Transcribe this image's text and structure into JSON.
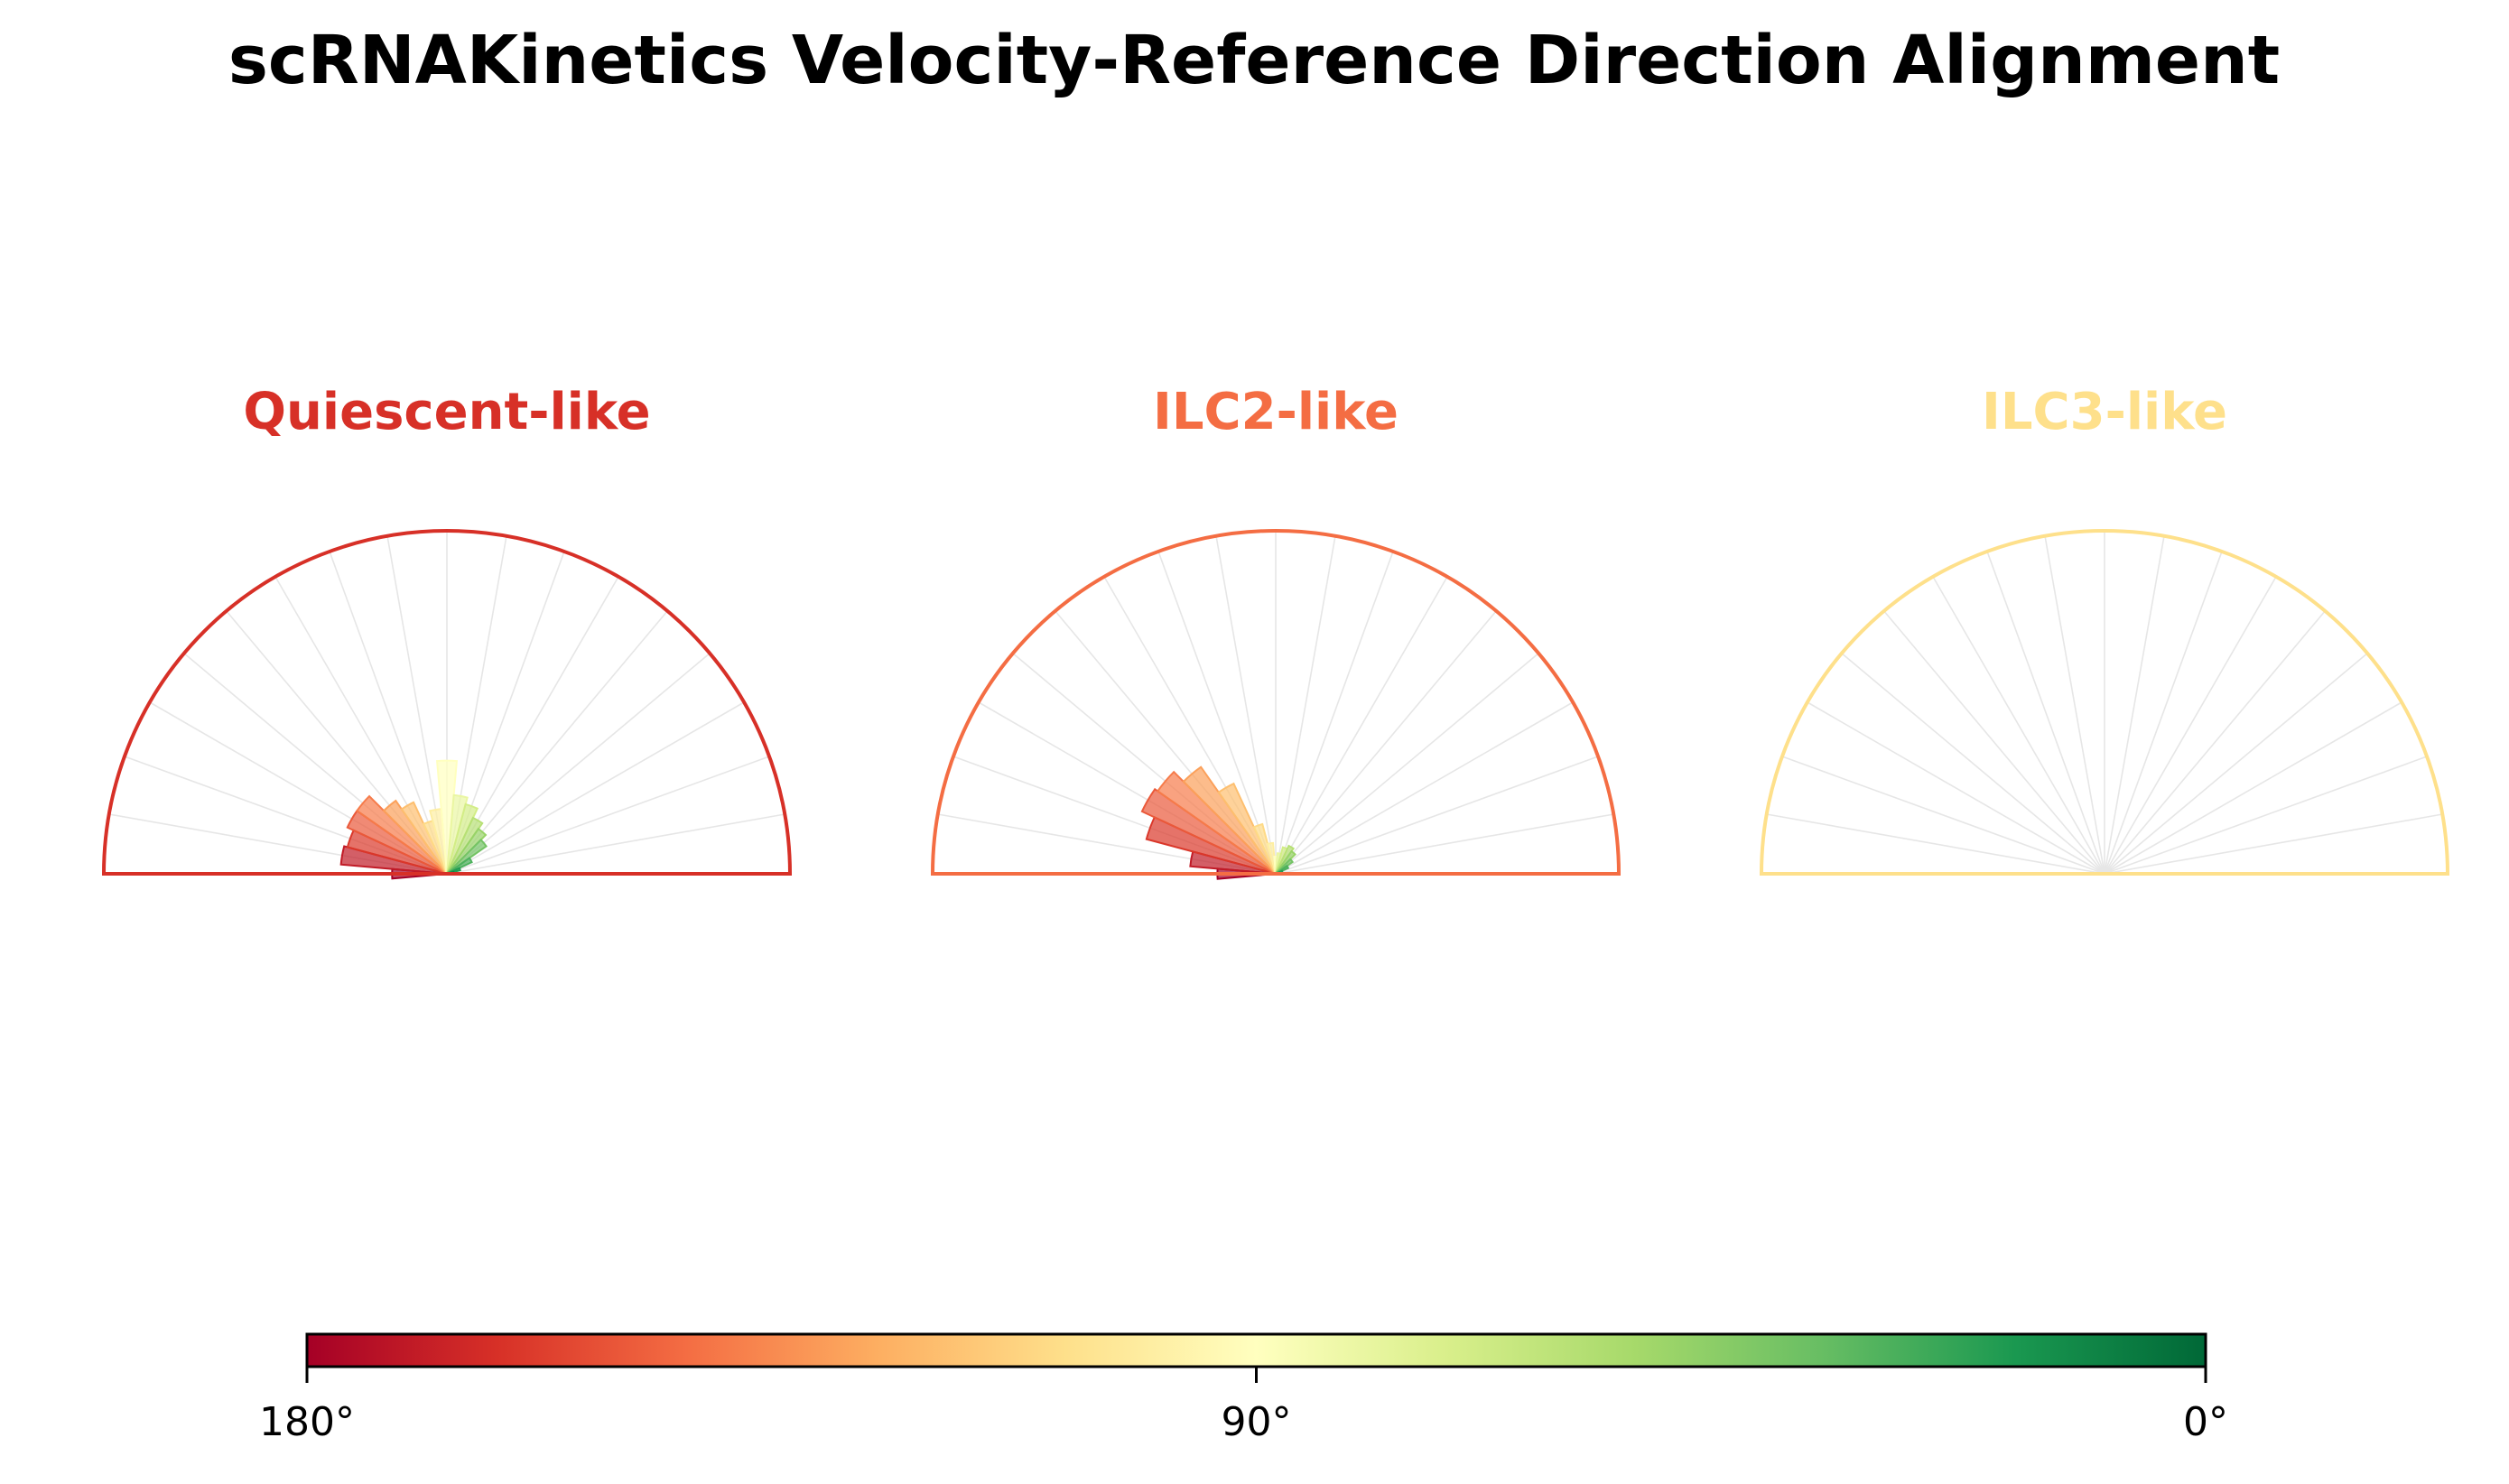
{
  "chart_data": {
    "type": "polar-histogram",
    "title": "scRNAKinetics Velocity-Reference Direction Alignment",
    "bin_count": 18,
    "bin_width_deg": 10,
    "angle_range_deg": [
      0,
      180
    ],
    "radial_max": 1.0,
    "angle_grid_every_deg": 10,
    "panels": [
      {
        "name": "Quiescent-like",
        "color": "#d73027",
        "bins": [
          {
            "angle_deg": 180,
            "value": 0.16
          },
          {
            "angle_deg": 170,
            "value": 0.31
          },
          {
            "angle_deg": 160,
            "value": 0.3
          },
          {
            "angle_deg": 150,
            "value": 0.32
          },
          {
            "angle_deg": 140,
            "value": 0.32
          },
          {
            "angle_deg": 130,
            "value": 0.26
          },
          {
            "angle_deg": 120,
            "value": 0.23
          },
          {
            "angle_deg": 110,
            "value": 0.16
          },
          {
            "angle_deg": 100,
            "value": 0.19
          },
          {
            "angle_deg": 90,
            "value": 0.33
          },
          {
            "angle_deg": 80,
            "value": 0.23
          },
          {
            "angle_deg": 70,
            "value": 0.21
          },
          {
            "angle_deg": 60,
            "value": 0.18
          },
          {
            "angle_deg": 50,
            "value": 0.16
          },
          {
            "angle_deg": 40,
            "value": 0.14
          },
          {
            "angle_deg": 30,
            "value": 0.08
          },
          {
            "angle_deg": 20,
            "value": 0.04
          },
          {
            "angle_deg": 10,
            "value": 0.02
          }
        ]
      },
      {
        "name": "ILC2-like",
        "color": "#f46d43",
        "bins": [
          {
            "angle_deg": 180,
            "value": 0.17
          },
          {
            "angle_deg": 170,
            "value": 0.25
          },
          {
            "angle_deg": 160,
            "value": 0.39
          },
          {
            "angle_deg": 150,
            "value": 0.43
          },
          {
            "angle_deg": 140,
            "value": 0.42
          },
          {
            "angle_deg": 130,
            "value": 0.38
          },
          {
            "angle_deg": 120,
            "value": 0.29
          },
          {
            "angle_deg": 110,
            "value": 0.15
          },
          {
            "angle_deg": 100,
            "value": 0.09
          },
          {
            "angle_deg": 90,
            "value": 0.05
          },
          {
            "angle_deg": 80,
            "value": 0.06
          },
          {
            "angle_deg": 70,
            "value": 0.08
          },
          {
            "angle_deg": 60,
            "value": 0.09
          },
          {
            "angle_deg": 50,
            "value": 0.08
          },
          {
            "angle_deg": 40,
            "value": 0.06
          },
          {
            "angle_deg": 30,
            "value": 0.04
          },
          {
            "angle_deg": 20,
            "value": 0.02
          },
          {
            "angle_deg": 10,
            "value": 0.01
          }
        ]
      },
      {
        "name": "ILC3-like",
        "color": "#fee08b",
        "bins": [
          {
            "angle_deg": 180,
            "value": 0.0
          },
          {
            "angle_deg": 170,
            "value": 0.0
          },
          {
            "angle_deg": 160,
            "value": 0.0
          },
          {
            "angle_deg": 150,
            "value": 0.0
          },
          {
            "angle_deg": 140,
            "value": 0.0
          },
          {
            "angle_deg": 130,
            "value": 0.0
          },
          {
            "angle_deg": 120,
            "value": 0.0
          },
          {
            "angle_deg": 110,
            "value": 0.0
          },
          {
            "angle_deg": 100,
            "value": 0.0
          },
          {
            "angle_deg": 90,
            "value": 0.0
          },
          {
            "angle_deg": 80,
            "value": 0.0
          },
          {
            "angle_deg": 70,
            "value": 0.0
          },
          {
            "angle_deg": 60,
            "value": 0.0
          },
          {
            "angle_deg": 50,
            "value": 0.0
          },
          {
            "angle_deg": 40,
            "value": 0.0
          },
          {
            "angle_deg": 30,
            "value": 0.0
          },
          {
            "angle_deg": 20,
            "value": 0.0
          },
          {
            "angle_deg": 10,
            "value": 0.0
          }
        ]
      }
    ],
    "colorbar": {
      "colormap": "RdYlGn",
      "stops": [
        "#a50026",
        "#d73027",
        "#f46d43",
        "#fdae61",
        "#fee08b",
        "#ffffbf",
        "#d9ef8b",
        "#a6d96a",
        "#66bd63",
        "#1a9850",
        "#006837"
      ],
      "ticks": [
        {
          "value": 180,
          "label": "180°"
        },
        {
          "value": 90,
          "label": "90°"
        },
        {
          "value": 0,
          "label": "0°"
        }
      ]
    }
  }
}
